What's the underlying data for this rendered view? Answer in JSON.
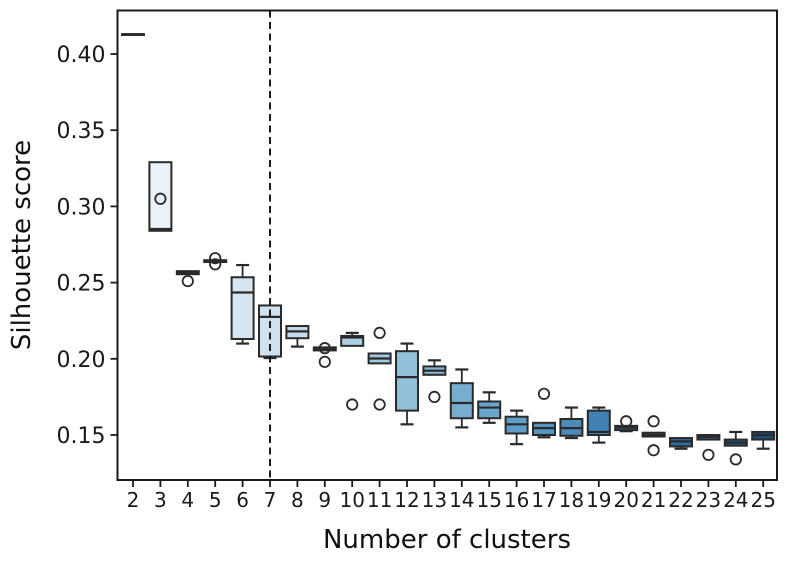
{
  "figure": {
    "background": "#ffffff",
    "frame_color": "#1a1a1a",
    "box_edge_color": "#2a2a2a",
    "vline_color": "#111111"
  },
  "chart_data": {
    "type": "box",
    "title": "",
    "xlabel": "Number of clusters",
    "ylabel": "Silhouette score",
    "x_tick_labels": [
      "2",
      "3",
      "4",
      "5",
      "6",
      "7",
      "8",
      "9",
      "10",
      "11",
      "12",
      "13",
      "14",
      "15",
      "16",
      "17",
      "18",
      "19",
      "20",
      "21",
      "22",
      "23",
      "24",
      "25"
    ],
    "y_tick_labels": [
      "0.15",
      "0.20",
      "0.25",
      "0.30",
      "0.35",
      "0.40"
    ],
    "y_tick_values": [
      0.15,
      0.2,
      0.25,
      0.3,
      0.35,
      0.4
    ],
    "ylim": [
      0.12,
      0.428
    ],
    "grid": false,
    "legend": "none",
    "vline": {
      "x": 7,
      "style": "dashed"
    },
    "colormap": "Blues",
    "boxes": [
      {
        "cluster": 2,
        "q1": 0.413,
        "median": 0.413,
        "q3": 0.413,
        "whisker_low": 0.413,
        "whisker_high": 0.413,
        "outliers": [],
        "color": "#f1f6fb"
      },
      {
        "cluster": 3,
        "q1": 0.284,
        "median": 0.2852,
        "q3": 0.329,
        "whisker_low": 0.284,
        "whisker_high": 0.329,
        "outliers": [
          0.305
        ],
        "color": "#eaf1f8"
      },
      {
        "cluster": 4,
        "q1": 0.2555,
        "median": 0.2565,
        "q3": 0.2575,
        "whisker_low": 0.2555,
        "whisker_high": 0.2575,
        "outliers": [
          0.251
        ],
        "color": "#e3edf6"
      },
      {
        "cluster": 5,
        "q1": 0.2635,
        "median": 0.264,
        "q3": 0.2647,
        "whisker_low": 0.2635,
        "whisker_high": 0.2647,
        "outliers": [
          0.266,
          0.262
        ],
        "color": "#dce9f3"
      },
      {
        "cluster": 6,
        "q1": 0.213,
        "median": 0.2435,
        "q3": 0.2535,
        "whisker_low": 0.21,
        "whisker_high": 0.2615,
        "outliers": [],
        "color": "#d5e5f1"
      },
      {
        "cluster": 7,
        "q1": 0.2015,
        "median": 0.2275,
        "q3": 0.235,
        "whisker_low": 0.2005,
        "whisker_high": 0.235,
        "outliers": [],
        "color": "#cfe1ef"
      },
      {
        "cluster": 8,
        "q1": 0.2135,
        "median": 0.218,
        "q3": 0.2215,
        "whisker_low": 0.208,
        "whisker_high": 0.2215,
        "outliers": [],
        "color": "#c4dbec"
      },
      {
        "cluster": 9,
        "q1": 0.2055,
        "median": 0.2065,
        "q3": 0.2075,
        "whisker_low": 0.2055,
        "whisker_high": 0.2075,
        "outliers": [
          0.207,
          0.198
        ],
        "color": "#b9d5e8"
      },
      {
        "cluster": 10,
        "q1": 0.2085,
        "median": 0.214,
        "q3": 0.215,
        "whisker_low": 0.2085,
        "whisker_high": 0.217,
        "outliers": [
          0.17
        ],
        "color": "#add0e5"
      },
      {
        "cluster": 11,
        "q1": 0.197,
        "median": 0.2002,
        "q3": 0.2035,
        "whisker_low": 0.197,
        "whisker_high": 0.2035,
        "outliers": [
          0.217,
          0.17
        ],
        "color": "#a0c8e0"
      },
      {
        "cluster": 12,
        "q1": 0.166,
        "median": 0.188,
        "q3": 0.205,
        "whisker_low": 0.157,
        "whisker_high": 0.21,
        "outliers": [],
        "color": "#92bfda"
      },
      {
        "cluster": 13,
        "q1": 0.1895,
        "median": 0.1922,
        "q3": 0.195,
        "whisker_low": 0.1895,
        "whisker_high": 0.199,
        "outliers": [
          0.175
        ],
        "color": "#84b7d5"
      },
      {
        "cluster": 14,
        "q1": 0.161,
        "median": 0.171,
        "q3": 0.184,
        "whisker_low": 0.155,
        "whisker_high": 0.193,
        "outliers": [],
        "color": "#77aed0"
      },
      {
        "cluster": 15,
        "q1": 0.161,
        "median": 0.168,
        "q3": 0.172,
        "whisker_low": 0.158,
        "whisker_high": 0.178,
        "outliers": [],
        "color": "#6aa5cb"
      },
      {
        "cluster": 16,
        "q1": 0.151,
        "median": 0.157,
        "q3": 0.162,
        "whisker_low": 0.144,
        "whisker_high": 0.166,
        "outliers": [],
        "color": "#5f9cc6"
      },
      {
        "cluster": 17,
        "q1": 0.15,
        "median": 0.1545,
        "q3": 0.158,
        "whisker_low": 0.1485,
        "whisker_high": 0.158,
        "outliers": [
          0.177
        ],
        "color": "#5593c0"
      },
      {
        "cluster": 18,
        "q1": 0.1495,
        "median": 0.1545,
        "q3": 0.1605,
        "whisker_low": 0.148,
        "whisker_high": 0.168,
        "outliers": [],
        "color": "#4c8ab9"
      },
      {
        "cluster": 19,
        "q1": 0.15,
        "median": 0.152,
        "q3": 0.166,
        "whisker_low": 0.145,
        "whisker_high": 0.168,
        "outliers": [],
        "color": "#4281b1"
      },
      {
        "cluster": 20,
        "q1": 0.1532,
        "median": 0.1548,
        "q3": 0.156,
        "whisker_low": 0.1525,
        "whisker_high": 0.156,
        "outliers": [
          0.159
        ],
        "color": "#3a79aa"
      },
      {
        "cluster": 21,
        "q1": 0.149,
        "median": 0.15,
        "q3": 0.1515,
        "whisker_low": 0.149,
        "whisker_high": 0.1515,
        "outliers": [
          0.159,
          0.14
        ],
        "color": "#3371a2"
      },
      {
        "cluster": 22,
        "q1": 0.1425,
        "median": 0.1458,
        "q3": 0.148,
        "whisker_low": 0.141,
        "whisker_high": 0.148,
        "outliers": [],
        "color": "#2d699a"
      },
      {
        "cluster": 23,
        "q1": 0.147,
        "median": 0.1488,
        "q3": 0.15,
        "whisker_low": 0.147,
        "whisker_high": 0.15,
        "outliers": [
          0.137
        ],
        "color": "#276191"
      },
      {
        "cluster": 24,
        "q1": 0.143,
        "median": 0.145,
        "q3": 0.147,
        "whisker_low": 0.143,
        "whisker_high": 0.152,
        "outliers": [
          0.134
        ],
        "color": "#225888"
      },
      {
        "cluster": 25,
        "q1": 0.147,
        "median": 0.15,
        "q3": 0.152,
        "whisker_low": 0.141,
        "whisker_high": 0.152,
        "outliers": [],
        "color": "#1e4d7b"
      }
    ]
  }
}
